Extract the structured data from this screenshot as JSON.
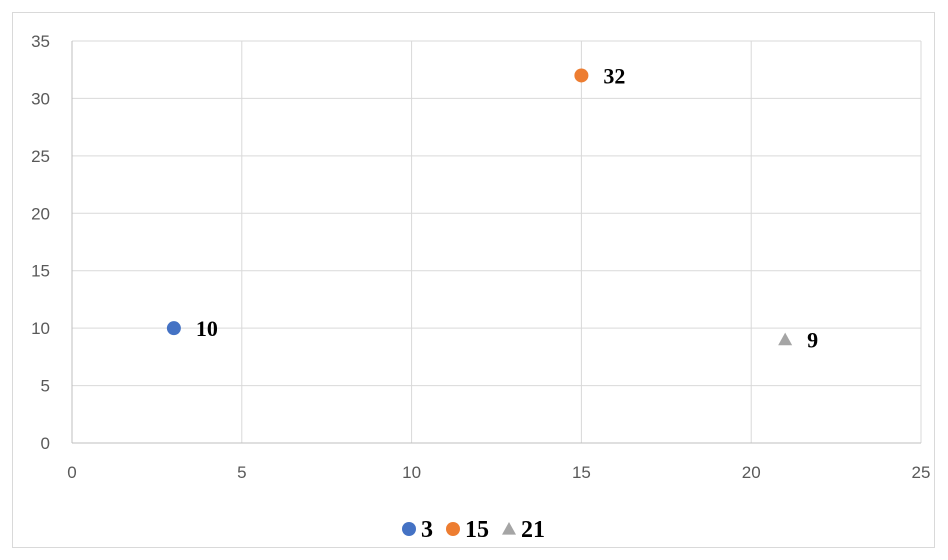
{
  "chart_data": {
    "type": "scatter",
    "title": "",
    "xlabel": "",
    "ylabel": "",
    "xlim": [
      0,
      25
    ],
    "ylim": [
      0,
      35
    ],
    "xticks": [
      0,
      5,
      10,
      15,
      20,
      25
    ],
    "yticks": [
      0,
      5,
      10,
      15,
      20,
      25,
      30,
      35
    ],
    "grid": true,
    "legend_position": "bottom",
    "series": [
      {
        "name": "3",
        "color": "#4472C4",
        "marker": "circle",
        "points": [
          {
            "x": 3,
            "y": 10,
            "label": "10"
          }
        ]
      },
      {
        "name": "15",
        "color": "#ED7D31",
        "marker": "circle",
        "points": [
          {
            "x": 15,
            "y": 32,
            "label": "32"
          }
        ]
      },
      {
        "name": "21",
        "color": "#A5A5A5",
        "marker": "triangle",
        "points": [
          {
            "x": 21,
            "y": 9,
            "label": "9"
          }
        ]
      }
    ]
  }
}
